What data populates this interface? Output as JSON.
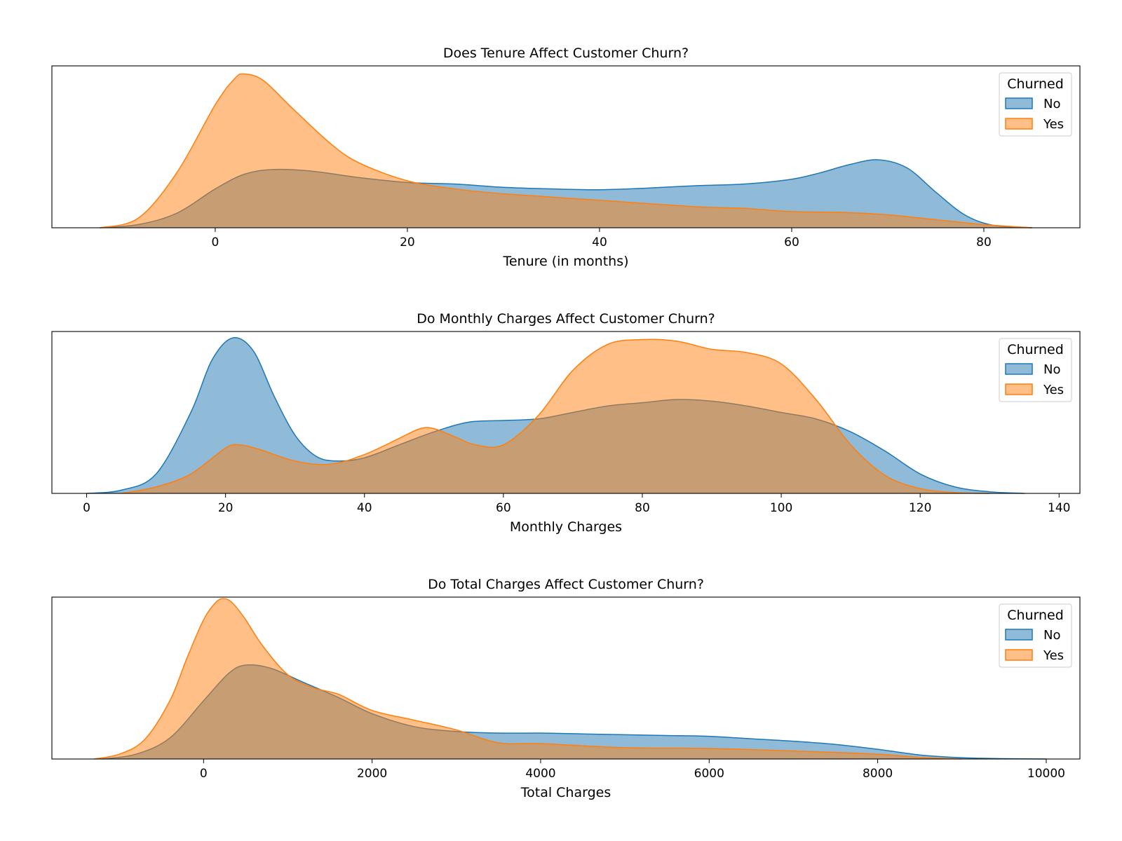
{
  "colors": {
    "No": "#1f77b4",
    "Yes": "#ff7f0e"
  },
  "chart_data": [
    {
      "type": "area",
      "title": "Does Tenure Affect Customer Churn?",
      "xlabel": "Tenure (in months)",
      "ylabel": "",
      "xlim": [
        -17,
        90
      ],
      "ylim": [
        0,
        1.0
      ],
      "xticks": [
        0,
        20,
        40,
        60,
        80
      ],
      "grid": false,
      "legend": {
        "title": "Churned",
        "labels": [
          "No",
          "Yes"
        ],
        "placement": "top-right"
      },
      "series": [
        {
          "name": "No",
          "x": [
            -12,
            -8,
            -4,
            0,
            3,
            6,
            10,
            15,
            20,
            25,
            30,
            35,
            40,
            45,
            50,
            55,
            60,
            63,
            66,
            69,
            72,
            75,
            78,
            81,
            85
          ],
          "y": [
            0.0,
            0.02,
            0.09,
            0.24,
            0.33,
            0.36,
            0.35,
            0.31,
            0.28,
            0.27,
            0.25,
            0.24,
            0.235,
            0.245,
            0.26,
            0.27,
            0.3,
            0.34,
            0.39,
            0.42,
            0.37,
            0.22,
            0.08,
            0.015,
            0.0
          ]
        },
        {
          "name": "Yes",
          "x": [
            -12,
            -8,
            -4,
            0,
            2,
            3,
            5,
            8,
            12,
            15,
            20,
            25,
            30,
            40,
            50,
            55,
            60,
            65,
            70,
            75,
            80,
            85
          ],
          "y": [
            0.0,
            0.06,
            0.34,
            0.76,
            0.92,
            0.95,
            0.91,
            0.74,
            0.52,
            0.4,
            0.29,
            0.24,
            0.21,
            0.17,
            0.13,
            0.12,
            0.1,
            0.095,
            0.08,
            0.05,
            0.02,
            0.0
          ]
        }
      ]
    },
    {
      "type": "area",
      "title": "Do Monthly Charges Affect Customer Churn?",
      "xlabel": "Monthly Charges",
      "ylabel": "",
      "xlim": [
        -5,
        143
      ],
      "ylim": [
        0,
        1.0
      ],
      "xticks": [
        0,
        20,
        40,
        60,
        80,
        100,
        120,
        140
      ],
      "grid": false,
      "legend": {
        "title": "Churned",
        "labels": [
          "No",
          "Yes"
        ],
        "placement": "top-right"
      },
      "series": [
        {
          "name": "No",
          "x": [
            0,
            5,
            10,
            15,
            18,
            21,
            24,
            27,
            30,
            33,
            36,
            40,
            45,
            50,
            55,
            60,
            65,
            70,
            75,
            80,
            85,
            90,
            95,
            100,
            105,
            110,
            115,
            120,
            125,
            130,
            135
          ],
          "y": [
            0.0,
            0.02,
            0.12,
            0.5,
            0.82,
            0.96,
            0.88,
            0.6,
            0.36,
            0.23,
            0.2,
            0.22,
            0.3,
            0.38,
            0.44,
            0.45,
            0.46,
            0.5,
            0.54,
            0.56,
            0.58,
            0.57,
            0.54,
            0.5,
            0.46,
            0.38,
            0.26,
            0.12,
            0.04,
            0.01,
            0.0
          ]
        },
        {
          "name": "Yes",
          "x": [
            5,
            10,
            15,
            20,
            22,
            25,
            30,
            35,
            40,
            45,
            48,
            50,
            53,
            56,
            60,
            65,
            70,
            75,
            80,
            85,
            90,
            95,
            100,
            105,
            110,
            115,
            120,
            125,
            130
          ],
          "y": [
            0.0,
            0.04,
            0.12,
            0.28,
            0.3,
            0.27,
            0.2,
            0.18,
            0.24,
            0.34,
            0.4,
            0.4,
            0.35,
            0.3,
            0.3,
            0.48,
            0.76,
            0.92,
            0.95,
            0.94,
            0.89,
            0.87,
            0.8,
            0.58,
            0.3,
            0.11,
            0.03,
            0.005,
            0.0
          ]
        }
      ]
    },
    {
      "type": "area",
      "title": "Do Total Charges Affect Customer Churn?",
      "xlabel": "Total Charges",
      "ylabel": "",
      "xlim": [
        -1800,
        10400
      ],
      "ylim": [
        0,
        1.0
      ],
      "xticks": [
        0,
        2000,
        4000,
        6000,
        8000,
        10000
      ],
      "grid": false,
      "legend": {
        "title": "Churned",
        "labels": [
          "No",
          "Yes"
        ],
        "placement": "top-right"
      },
      "series": [
        {
          "name": "No",
          "x": [
            -1200,
            -800,
            -400,
            0,
            300,
            500,
            800,
            1200,
            1600,
            2000,
            2500,
            3000,
            3500,
            4000,
            4500,
            5000,
            5500,
            6000,
            6500,
            7000,
            7500,
            8000,
            8500,
            9000,
            9500,
            10000
          ],
          "y": [
            0.0,
            0.03,
            0.13,
            0.36,
            0.53,
            0.58,
            0.56,
            0.47,
            0.38,
            0.28,
            0.2,
            0.17,
            0.16,
            0.16,
            0.155,
            0.15,
            0.145,
            0.14,
            0.125,
            0.11,
            0.09,
            0.06,
            0.025,
            0.008,
            0.002,
            0.0
          ]
        },
        {
          "name": "Yes",
          "x": [
            -1300,
            -1000,
            -700,
            -400,
            -200,
            0,
            150,
            250,
            350,
            500,
            700,
            1000,
            1300,
            1600,
            2000,
            2500,
            3000,
            3500,
            4000,
            5000,
            6000,
            7000,
            8000,
            8500,
            9000
          ],
          "y": [
            0.0,
            0.03,
            0.12,
            0.36,
            0.62,
            0.86,
            0.97,
            0.99,
            0.96,
            0.86,
            0.7,
            0.52,
            0.44,
            0.4,
            0.3,
            0.24,
            0.18,
            0.1,
            0.095,
            0.07,
            0.065,
            0.05,
            0.03,
            0.01,
            0.0
          ]
        }
      ]
    }
  ]
}
